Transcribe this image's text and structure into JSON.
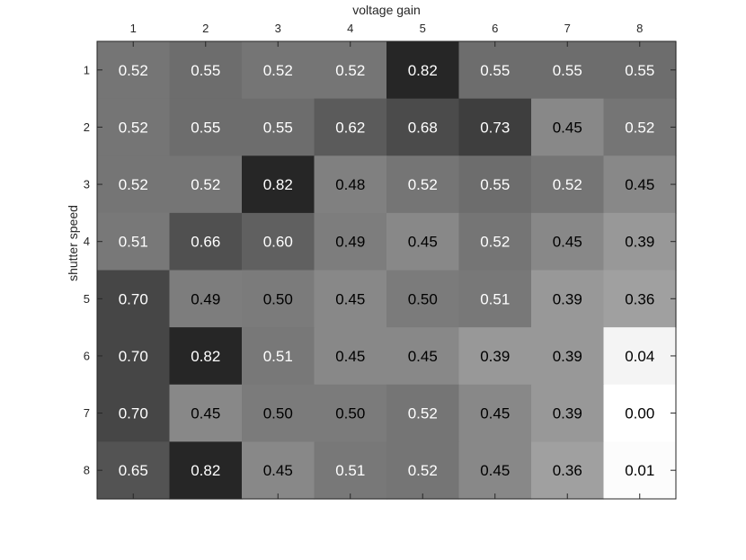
{
  "chart_data": {
    "type": "heatmap",
    "title": "",
    "xlabel": "voltage gain",
    "ylabel": "shutter speed",
    "x_categories": [
      "1",
      "2",
      "3",
      "4",
      "5",
      "6",
      "7",
      "8"
    ],
    "y_categories": [
      "1",
      "2",
      "3",
      "4",
      "5",
      "6",
      "7",
      "8"
    ],
    "x_axis_position": "top",
    "colormap": "gray",
    "color_range": [
      0,
      0.82
    ],
    "grid": false,
    "values": [
      [
        0.52,
        0.55,
        0.52,
        0.52,
        0.82,
        0.55,
        0.55,
        0.55
      ],
      [
        0.52,
        0.55,
        0.55,
        0.62,
        0.68,
        0.73,
        0.45,
        0.52
      ],
      [
        0.52,
        0.52,
        0.82,
        0.48,
        0.52,
        0.55,
        0.52,
        0.45
      ],
      [
        0.51,
        0.66,
        0.6,
        0.49,
        0.45,
        0.52,
        0.45,
        0.39
      ],
      [
        0.7,
        0.49,
        0.5,
        0.45,
        0.5,
        0.51,
        0.39,
        0.36
      ],
      [
        0.7,
        0.82,
        0.51,
        0.45,
        0.45,
        0.39,
        0.39,
        0.04
      ],
      [
        0.7,
        0.45,
        0.5,
        0.5,
        0.52,
        0.45,
        0.39,
        0.0
      ],
      [
        0.65,
        0.82,
        0.45,
        0.51,
        0.52,
        0.45,
        0.36,
        0.01
      ]
    ],
    "labels": [
      [
        "0.52",
        "0.55",
        "0.52",
        "0.52",
        "0.82",
        "0.55",
        "0.55",
        "0.55"
      ],
      [
        "0.52",
        "0.55",
        "0.55",
        "0.62",
        "0.68",
        "0.73",
        "0.45",
        "0.52"
      ],
      [
        "0.52",
        "0.52",
        "0.82",
        "0.48",
        "0.52",
        "0.55",
        "0.52",
        "0.45"
      ],
      [
        "0.51",
        "0.66",
        "0.60",
        "0.49",
        "0.45",
        "0.52",
        "0.45",
        "0.39"
      ],
      [
        "0.70",
        "0.49",
        "0.50",
        "0.45",
        "0.50",
        "0.51",
        "0.39",
        "0.36"
      ],
      [
        "0.70",
        "0.82",
        "0.51",
        "0.45",
        "0.45",
        "0.39",
        "0.39",
        "0.04"
      ],
      [
        "0.70",
        "0.45",
        "0.50",
        "0.50",
        "0.52",
        "0.45",
        "0.39",
        "0.00"
      ],
      [
        "0.65",
        "0.82",
        "0.45",
        "0.51",
        "0.52",
        "0.45",
        "0.36",
        "0.01"
      ]
    ],
    "label_text_colors": [
      [
        "#ffffff",
        "#ffffff",
        "#ffffff",
        "#ffffff",
        "#ffffff",
        "#ffffff",
        "#ffffff",
        "#ffffff"
      ],
      [
        "#ffffff",
        "#ffffff",
        "#ffffff",
        "#ffffff",
        "#ffffff",
        "#ffffff",
        "#000000",
        "#ffffff"
      ],
      [
        "#ffffff",
        "#ffffff",
        "#ffffff",
        "#000000",
        "#ffffff",
        "#ffffff",
        "#ffffff",
        "#000000"
      ],
      [
        "#ffffff",
        "#ffffff",
        "#ffffff",
        "#000000",
        "#000000",
        "#ffffff",
        "#000000",
        "#000000"
      ],
      [
        "#ffffff",
        "#000000",
        "#000000",
        "#000000",
        "#000000",
        "#ffffff",
        "#000000",
        "#000000"
      ],
      [
        "#ffffff",
        "#ffffff",
        "#ffffff",
        "#000000",
        "#000000",
        "#000000",
        "#000000",
        "#000000"
      ],
      [
        "#ffffff",
        "#000000",
        "#000000",
        "#000000",
        "#ffffff",
        "#000000",
        "#000000",
        "#000000"
      ],
      [
        "#ffffff",
        "#ffffff",
        "#000000",
        "#ffffff",
        "#ffffff",
        "#000000",
        "#000000",
        "#000000"
      ]
    ]
  }
}
